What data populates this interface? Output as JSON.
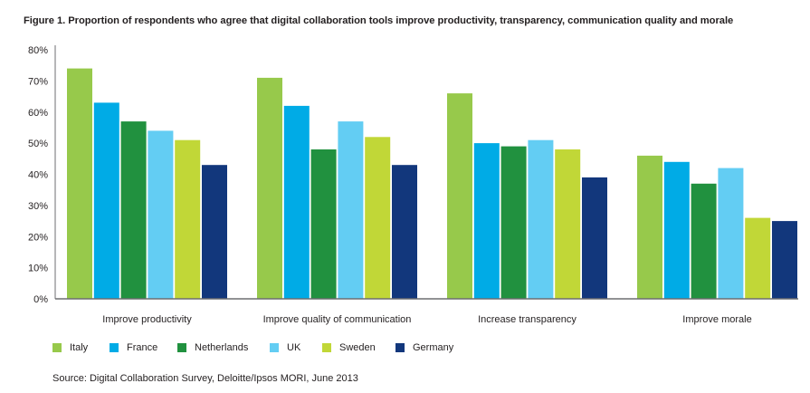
{
  "chart_data": {
    "type": "bar",
    "title": "Figure 1. Proportion of respondents who agree that digital collaboration tools improve productivity, transparency, communication quality and morale",
    "xlabel": "",
    "ylabel": "",
    "ylim": [
      0,
      80
    ],
    "yticks": [
      0,
      10,
      20,
      30,
      40,
      50,
      60,
      70,
      80
    ],
    "ytick_labels": [
      "0%",
      "10%",
      "20%",
      "30%",
      "40%",
      "50%",
      "60%",
      "70%",
      "80%"
    ],
    "grid": false,
    "legend_position": "bottom-left",
    "categories": [
      "Improve productivity",
      "Improve quality of communication",
      "Increase transparency",
      "Improve morale"
    ],
    "series": [
      {
        "name": "Italy",
        "color": "#97c94b",
        "values": [
          74,
          71,
          66,
          46
        ]
      },
      {
        "name": "France",
        "color": "#00abe6",
        "values": [
          63,
          62,
          50,
          44
        ]
      },
      {
        "name": "Netherlands",
        "color": "#21913f",
        "values": [
          57,
          48,
          49,
          37
        ]
      },
      {
        "name": "UK",
        "color": "#63cdf3",
        "values": [
          54,
          57,
          51,
          42
        ]
      },
      {
        "name": "Sweden",
        "color": "#c1d737",
        "values": [
          51,
          52,
          48,
          26
        ]
      },
      {
        "name": "Germany",
        "color": "#12377c",
        "values": [
          43,
          43,
          39,
          25
        ]
      }
    ],
    "source": "Source: Digital Collaboration Survey, Deloitte/Ipsos MORI, June 2013"
  }
}
